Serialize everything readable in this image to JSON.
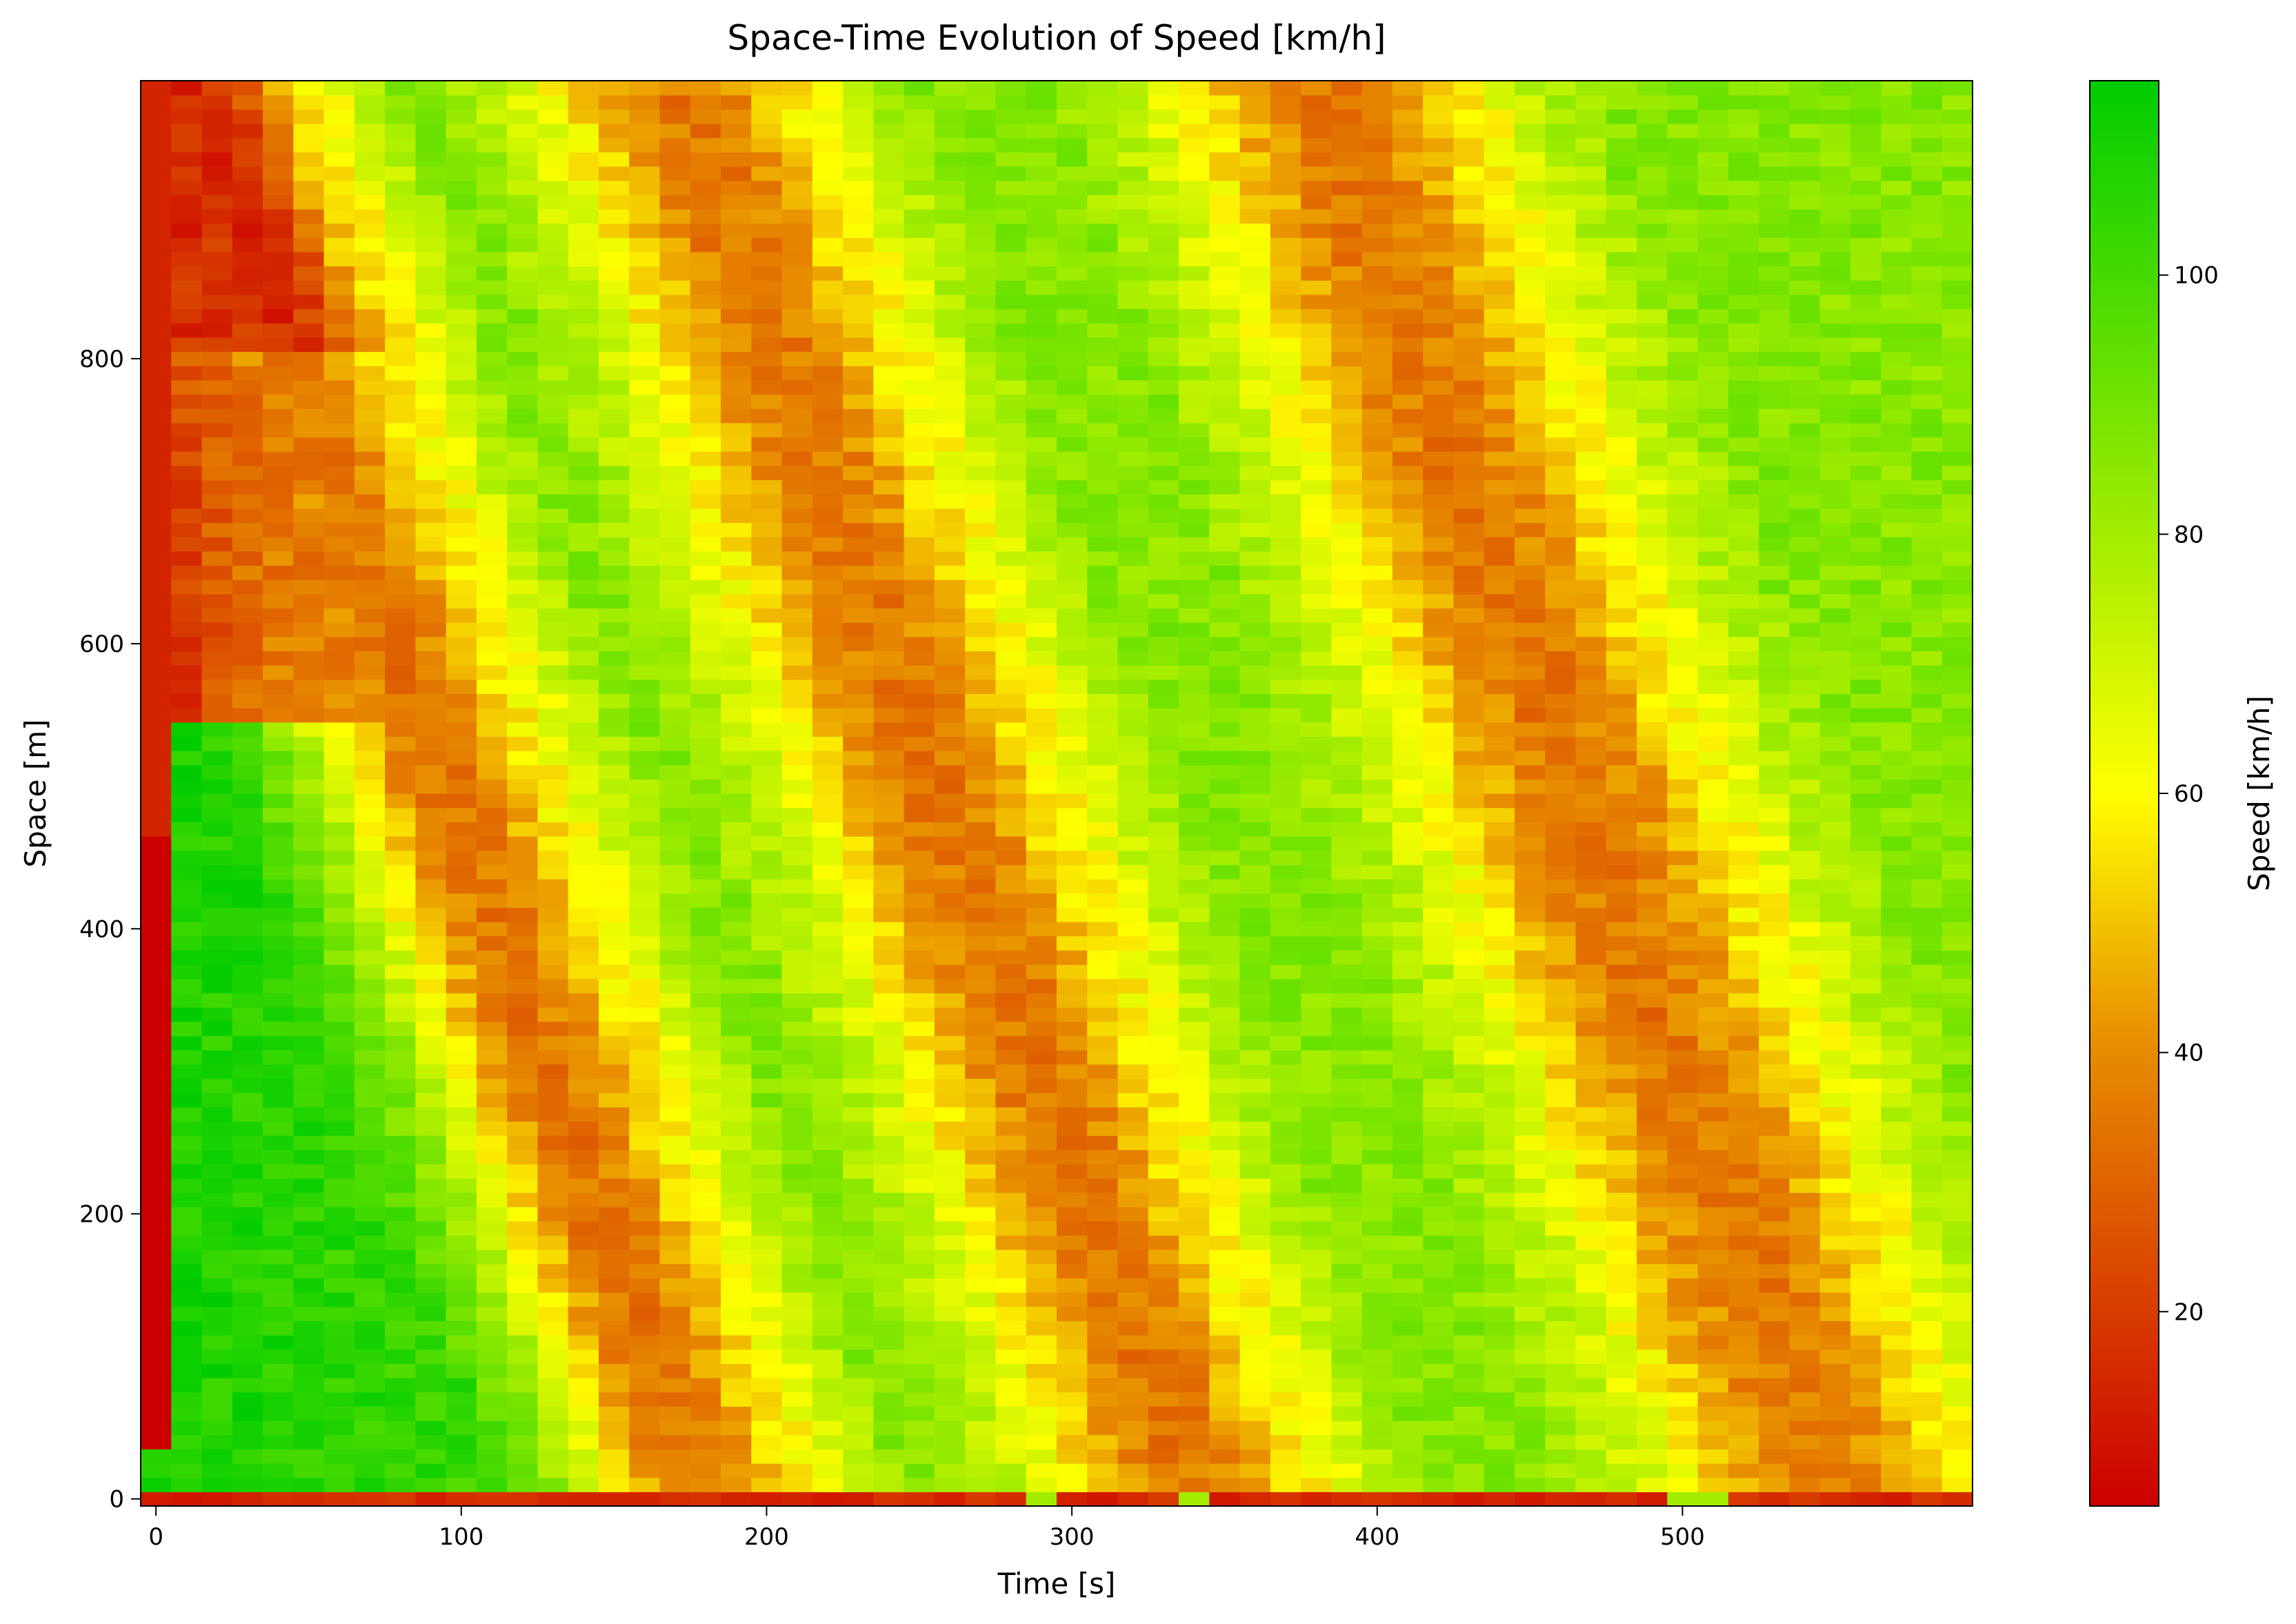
{
  "chart_data": {
    "type": "heatmap",
    "title": "Space-Time Evolution of Speed [km/h]",
    "xlabel": "Time [s]",
    "ylabel": "Space [m]",
    "xlim": [
      -5,
      595
    ],
    "ylim": [
      -5,
      995
    ],
    "x_ticks": [
      {
        "value": 0,
        "label": "0"
      },
      {
        "value": 100,
        "label": "100"
      },
      {
        "value": 200,
        "label": "200"
      },
      {
        "value": 300,
        "label": "300"
      },
      {
        "value": 400,
        "label": "400"
      },
      {
        "value": 500,
        "label": "500"
      }
    ],
    "y_ticks": [
      {
        "value": 0,
        "label": "0"
      },
      {
        "value": 200,
        "label": "200"
      },
      {
        "value": 400,
        "label": "400"
      },
      {
        "value": 600,
        "label": "600"
      },
      {
        "value": 800,
        "label": "800"
      }
    ],
    "grid": false,
    "cell": {
      "time_step": 10,
      "space_step": 10
    },
    "colorbar": {
      "label": "Speed [km/h]",
      "range": [
        5,
        115
      ],
      "ticks": [
        {
          "value": 20,
          "label": "20"
        },
        {
          "value": 40,
          "label": "40"
        },
        {
          "value": 60,
          "label": "60"
        },
        {
          "value": 80,
          "label": "80"
        },
        {
          "value": 100,
          "label": "100"
        }
      ],
      "colors": [
        "#cc0000",
        "#e89000",
        "#ffff00",
        "#00cc00"
      ]
    },
    "field": {
      "free_flow_speed": 86,
      "jam_speed": 35,
      "jam_bands": [
        {
          "t_at_1000m": 10,
          "t_at_0m": 180,
          "width_s": 30
        },
        {
          "t_at_1000m": 170,
          "t_at_0m": 340,
          "width_s": 35
        },
        {
          "t_at_1000m": 380,
          "t_at_0m": 550,
          "width_s": 40
        }
      ],
      "yellow_fringes": [
        {
          "t_at_1000m": 45,
          "t_at_0m": 215,
          "width_s": 18
        },
        {
          "t_at_1000m": 210,
          "t_at_0m": 380,
          "width_s": 20
        },
        {
          "t_at_1000m": 425,
          "t_at_0m": 595,
          "width_s": 20
        }
      ],
      "initial_jam": {
        "t_end": 10,
        "space_min": 40,
        "space_max": 470,
        "speed": 5
      },
      "initial_free_flow": {
        "space_max": 550,
        "speed": 110
      }
    }
  }
}
